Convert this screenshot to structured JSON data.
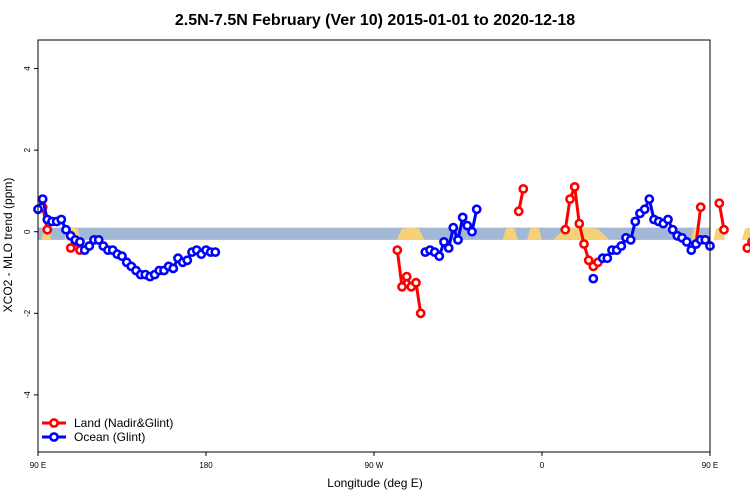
{
  "chart_data": {
    "type": "line",
    "title": "2.5N-7.5N February (Ver 10)   2015-01-01 to 2020-12-18",
    "xlabel": "Longitude (deg E)",
    "ylabel": "XCO2 - MLO trend (ppm)",
    "xlim": [
      90,
      450
    ],
    "ylim": [
      -5.4,
      4.7
    ],
    "x_ticks": [
      {
        "value": 90,
        "label": "90 E"
      },
      {
        "value": 180,
        "label": "180"
      },
      {
        "value": 270,
        "label": "90 W"
      },
      {
        "value": 360,
        "label": "0"
      },
      {
        "value": 450,
        "label": "90 E"
      },
      {
        "value": 540,
        "label": "180"
      }
    ],
    "y_ticks": [
      {
        "value": -4,
        "label": "-4"
      },
      {
        "value": -2,
        "label": "-2"
      },
      {
        "value": 0,
        "label": "0"
      },
      {
        "value": 2,
        "label": "2"
      },
      {
        "value": 4,
        "label": "4"
      }
    ],
    "grid": false,
    "legend_position": "bottom-left",
    "band": {
      "y_range": [
        -0.2,
        0.1
      ],
      "ocean_color": "#a3b7d6",
      "land_color": "#f5d27a"
    },
    "series": [
      {
        "name": "Land (Nadir&Glint)",
        "color": "#ff0000",
        "segments": [
          [
            [
              92.5,
              0.6
            ],
            [
              95,
              0.05
            ]
          ],
          [
            [
              107.5,
              -0.4
            ],
            [
              110,
              -0.25
            ],
            [
              112.5,
              -0.45
            ]
          ],
          [
            [
              282.5,
              -0.45
            ],
            [
              285,
              -1.35
            ],
            [
              287.5,
              -1.1
            ],
            [
              290,
              -1.35
            ],
            [
              292.5,
              -1.25
            ],
            [
              295,
              -2.0
            ]
          ],
          [
            [
              347.5,
              0.5
            ],
            [
              350,
              1.05
            ]
          ],
          [
            [
              372.5,
              0.05
            ],
            [
              375,
              0.8
            ],
            [
              377.5,
              1.1
            ],
            [
              380,
              0.2
            ],
            [
              382.5,
              -0.3
            ],
            [
              385,
              -0.7
            ],
            [
              387.5,
              -0.85
            ],
            [
              390,
              -0.75
            ]
          ],
          [
            [
              442.5,
              -0.3
            ],
            [
              445,
              0.6
            ]
          ],
          [
            [
              455,
              0.7
            ],
            [
              457.5,
              0.05
            ]
          ],
          [
            [
              470,
              -0.4
            ],
            [
              472.5,
              -0.25
            ],
            [
              475,
              -0.45
            ]
          ]
        ]
      },
      {
        "name": "Ocean (Glint)",
        "color": "#0000ff",
        "segments": [
          [
            [
              90,
              0.55
            ],
            [
              92.5,
              0.8
            ],
            [
              95,
              0.3
            ],
            [
              97.5,
              0.25
            ],
            [
              100,
              0.25
            ],
            [
              102.5,
              0.3
            ],
            [
              105,
              0.05
            ],
            [
              107.5,
              -0.1
            ],
            [
              110,
              -0.2
            ],
            [
              112.5,
              -0.25
            ],
            [
              115,
              -0.45
            ],
            [
              117.5,
              -0.35
            ],
            [
              120,
              -0.2
            ],
            [
              122.5,
              -0.2
            ],
            [
              125,
              -0.35
            ],
            [
              127.5,
              -0.45
            ],
            [
              130,
              -0.45
            ],
            [
              132.5,
              -0.55
            ],
            [
              135,
              -0.6
            ],
            [
              137.5,
              -0.75
            ],
            [
              140,
              -0.85
            ],
            [
              142.5,
              -0.95
            ],
            [
              145,
              -1.05
            ],
            [
              147.5,
              -1.05
            ],
            [
              150,
              -1.1
            ],
            [
              152.5,
              -1.05
            ],
            [
              155,
              -0.95
            ],
            [
              157.5,
              -0.95
            ],
            [
              160,
              -0.85
            ],
            [
              162.5,
              -0.9
            ],
            [
              165,
              -0.65
            ],
            [
              167.5,
              -0.75
            ],
            [
              170,
              -0.7
            ],
            [
              172.5,
              -0.5
            ],
            [
              175,
              -0.45
            ],
            [
              177.5,
              -0.55
            ],
            [
              180,
              -0.45
            ],
            [
              182.5,
              -0.5
            ],
            [
              185,
              -0.5
            ]
          ],
          [
            [
              297.5,
              -0.5
            ],
            [
              300,
              -0.45
            ],
            [
              302.5,
              -0.5
            ],
            [
              305,
              -0.6
            ],
            [
              307.5,
              -0.25
            ],
            [
              310,
              -0.4
            ],
            [
              312.5,
              0.1
            ],
            [
              315,
              -0.2
            ],
            [
              317.5,
              0.35
            ],
            [
              320,
              0.15
            ],
            [
              322.5,
              0.0
            ],
            [
              325,
              0.55
            ]
          ],
          [
            [
              387.5,
              -1.15
            ]
          ],
          [
            [
              392.5,
              -0.65
            ],
            [
              395,
              -0.65
            ],
            [
              397.5,
              -0.45
            ],
            [
              400,
              -0.45
            ],
            [
              402.5,
              -0.35
            ],
            [
              405,
              -0.15
            ],
            [
              407.5,
              -0.2
            ],
            [
              410,
              0.25
            ],
            [
              412.5,
              0.45
            ],
            [
              415,
              0.55
            ],
            [
              417.5,
              0.8
            ],
            [
              420,
              0.3
            ],
            [
              422.5,
              0.25
            ],
            [
              425,
              0.2
            ],
            [
              427.5,
              0.3
            ],
            [
              430,
              0.05
            ],
            [
              432.5,
              -0.1
            ],
            [
              435,
              -0.15
            ],
            [
              437.5,
              -0.25
            ],
            [
              440,
              -0.45
            ],
            [
              442.5,
              -0.3
            ],
            [
              445,
              -0.2
            ],
            [
              447.5,
              -0.2
            ],
            [
              450,
              -0.35
            ]
          ]
        ]
      }
    ]
  }
}
